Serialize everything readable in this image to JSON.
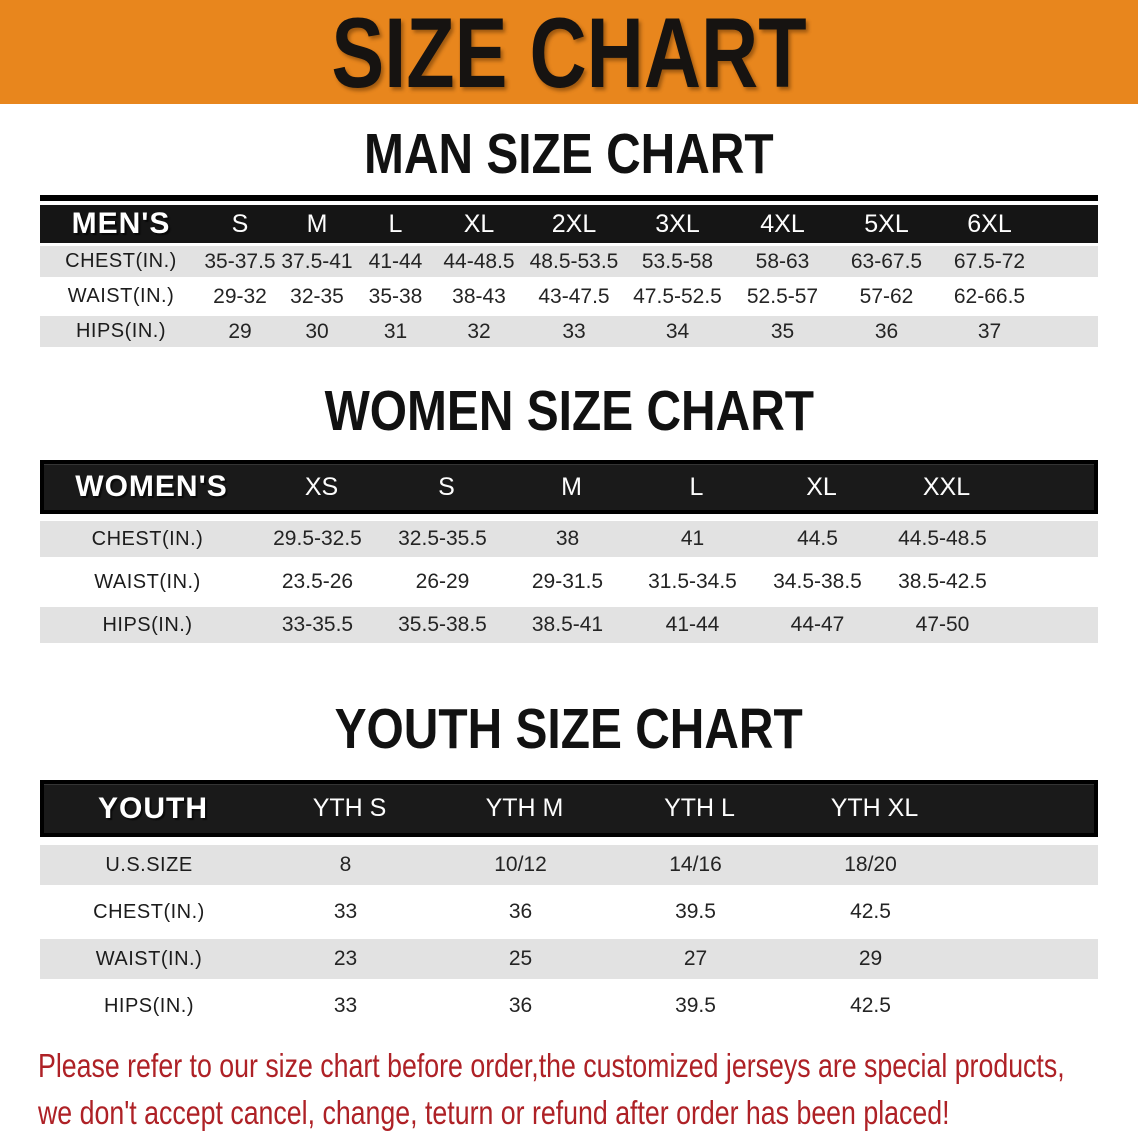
{
  "banner": {
    "title": "SIZE CHART",
    "bg_color": "#E8861D",
    "text_color": "#161311"
  },
  "sections": [
    {
      "id": "men",
      "heading": "MAN SIZE CHART",
      "header_label": "MEN'S",
      "columns": [
        "S",
        "M",
        "L",
        "XL",
        "2XL",
        "3XL",
        "4XL",
        "5XL",
        "6XL"
      ],
      "rows": [
        {
          "label": "CHEST(IN.)",
          "values": [
            "35-37.5",
            "37.5-41",
            "41-44",
            "44-48.5",
            "48.5-53.5",
            "53.5-58",
            "58-63",
            "63-67.5",
            "67.5-72"
          ]
        },
        {
          "label": "WAIST(IN.)",
          "values": [
            "29-32",
            "32-35",
            "35-38",
            "38-43",
            "43-47.5",
            "47.5-52.5",
            "52.5-57",
            "57-62",
            "62-66.5"
          ]
        },
        {
          "label": "HIPS(IN.)",
          "values": [
            "29",
            "30",
            "31",
            "32",
            "33",
            "34",
            "35",
            "36",
            "37"
          ]
        }
      ]
    },
    {
      "id": "women",
      "heading": "WOMEN SIZE CHART",
      "header_label": "WOMEN'S",
      "columns": [
        "XS",
        "S",
        "M",
        "L",
        "XL",
        "XXL"
      ],
      "rows": [
        {
          "label": "CHEST(IN.)",
          "values": [
            "29.5-32.5",
            "32.5-35.5",
            "38",
            "41",
            "44.5",
            "44.5-48.5"
          ]
        },
        {
          "label": "WAIST(IN.)",
          "values": [
            "23.5-26",
            "26-29",
            "29-31.5",
            "31.5-34.5",
            "34.5-38.5",
            "38.5-42.5"
          ]
        },
        {
          "label": "HIPS(IN.)",
          "values": [
            "33-35.5",
            "35.5-38.5",
            "38.5-41",
            "41-44",
            "44-47",
            "47-50"
          ]
        }
      ]
    },
    {
      "id": "youth",
      "heading": "YOUTH SIZE CHART",
      "header_label": "YOUTH",
      "columns": [
        "YTH S",
        "YTH M",
        "YTH L",
        "YTH XL"
      ],
      "rows": [
        {
          "label": "U.S.SIZE",
          "values": [
            "8",
            "10/12",
            "14/16",
            "18/20"
          ]
        },
        {
          "label": "CHEST(IN.)",
          "values": [
            "33",
            "36",
            "39.5",
            "42.5"
          ]
        },
        {
          "label": "WAIST(IN.)",
          "values": [
            "23",
            "25",
            "27",
            "29"
          ]
        },
        {
          "label": "HIPS(IN.)",
          "values": [
            "33",
            "36",
            "39.5",
            "42.5"
          ]
        }
      ]
    }
  ],
  "disclaimer": {
    "line1": "Please refer to our size chart before order,the customized jerseys are special products,",
    "line2": "we don't accept cancel, change, teturn or refund after order has been placed!",
    "color": "#AE2126"
  },
  "colors": {
    "banner_orange": "#E8861D",
    "table_header_black": "#151515",
    "row_gray": "#E2E2E2",
    "disclaimer_red": "#AE2126"
  }
}
